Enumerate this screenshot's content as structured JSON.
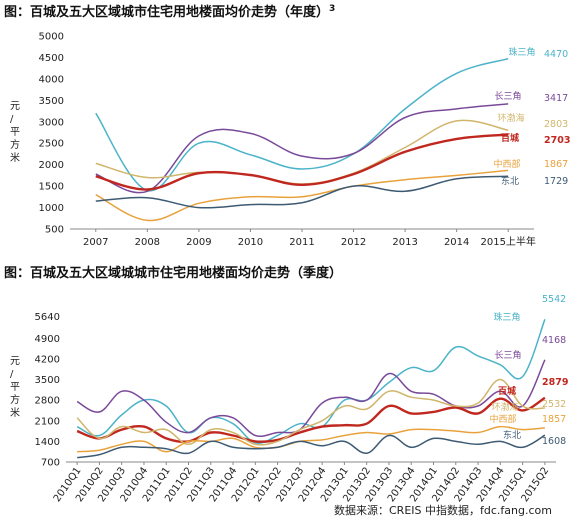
{
  "source": "数据来源：CREIS 中指数据，fdc.fang.com",
  "chart_data": [
    {
      "type": "line",
      "title": "图：百城及五大区域城市住宅用地楼面均价走势（年度）",
      "title_sup": "3",
      "ylabel": "元/平方米",
      "ylim": [
        500,
        5000
      ],
      "yticks": [
        500,
        1000,
        1500,
        2000,
        2500,
        3000,
        3500,
        4000,
        4500,
        5000
      ],
      "categories": [
        "2007",
        "2008",
        "2009",
        "2010",
        "2011",
        "2012",
        "2013",
        "2014",
        "2015上半年"
      ],
      "series": [
        {
          "name": "珠三角",
          "color": "#4bb3c9",
          "value_label": "4470",
          "values": [
            3200,
            1400,
            2500,
            2230,
            1900,
            2250,
            3300,
            4130,
            4470
          ]
        },
        {
          "name": "长三角",
          "color": "#7a4a9a",
          "value_label": "3417",
          "values": [
            1780,
            1380,
            2670,
            2730,
            2200,
            2260,
            3100,
            3300,
            3417
          ]
        },
        {
          "name": "环渤海",
          "color": "#d0b56a",
          "value_label": "2803",
          "values": [
            2030,
            1700,
            1820,
            1760,
            1550,
            1800,
            2400,
            3020,
            2803
          ]
        },
        {
          "name": "百城",
          "color": "#c0271f",
          "value_label": "2703",
          "values": [
            1730,
            1420,
            1800,
            1760,
            1530,
            1780,
            2300,
            2600,
            2703
          ]
        },
        {
          "name": "中西部",
          "color": "#e8a23c",
          "value_label": "1867",
          "values": [
            1300,
            700,
            1100,
            1250,
            1250,
            1500,
            1650,
            1750,
            1867
          ]
        },
        {
          "name": "东北",
          "color": "#3d5a73",
          "value_label": "1729",
          "values": [
            1150,
            1230,
            1000,
            1070,
            1110,
            1500,
            1380,
            1670,
            1729
          ]
        }
      ]
    },
    {
      "type": "line",
      "title": "图：百城及五大区域城城市住宅用地楼面均价走势（季度）",
      "ylabel": "元/平方米",
      "ylim": [
        700,
        6300
      ],
      "yticks": [
        700,
        1400,
        2100,
        2800,
        3500,
        4200,
        4900,
        5640
      ],
      "categories": [
        "2010Q1",
        "2010Q2",
        "2010Q3",
        "2010Q4",
        "2011Q1",
        "2011Q2",
        "2011Q3",
        "2011Q4",
        "2012Q1",
        "2012Q2",
        "2012Q3",
        "2012Q4",
        "2013Q1",
        "2013Q2",
        "2013Q3",
        "2013Q4",
        "2014Q1",
        "2014Q2",
        "2014Q3",
        "2014Q4",
        "2015Q1",
        "2015Q2"
      ],
      "series": [
        {
          "name": "珠三角",
          "color": "#4bb3c9",
          "value_label": "5542",
          "values": [
            1900,
            1600,
            2300,
            2800,
            2600,
            1700,
            2200,
            2000,
            1350,
            1600,
            2000,
            1900,
            2800,
            2800,
            3400,
            3900,
            3800,
            4600,
            4300,
            4000,
            3600,
            5542
          ]
        },
        {
          "name": "长三角",
          "color": "#7a4a9a",
          "value_label": "4168",
          "values": [
            2750,
            2400,
            3100,
            2800,
            2050,
            1700,
            2200,
            2200,
            1600,
            1700,
            1800,
            2700,
            2900,
            2800,
            3700,
            3100,
            3000,
            2600,
            2600,
            3100,
            2600,
            4168
          ]
        },
        {
          "name": "百城",
          "color": "#c0271f",
          "value_label": "2879",
          "values": [
            1750,
            1500,
            1800,
            1900,
            1500,
            1400,
            1700,
            1600,
            1400,
            1450,
            1700,
            1900,
            1950,
            2000,
            2600,
            2350,
            2400,
            2550,
            2350,
            2850,
            2450,
            2879
          ]
        },
        {
          "name": "环渤海",
          "color": "#d0b56a",
          "value_label": "2532",
          "values": [
            2200,
            1500,
            1900,
            1700,
            1800,
            1300,
            1800,
            1700,
            1300,
            1400,
            1800,
            2100,
            2600,
            2500,
            3100,
            2900,
            2800,
            2600,
            2700,
            3500,
            2600,
            2532
          ]
        },
        {
          "name": "中西部",
          "color": "#e8a23c",
          "value_label": "1857",
          "values": [
            1050,
            1100,
            1300,
            1400,
            1050,
            1400,
            1400,
            1500,
            1200,
            1200,
            1400,
            1450,
            1600,
            1700,
            1650,
            1800,
            1800,
            1750,
            1700,
            1900,
            1800,
            1857
          ]
        },
        {
          "name": "东北",
          "color": "#3d5a73",
          "value_label": "1608",
          "values": [
            850,
            950,
            1200,
            1200,
            1150,
            1000,
            1400,
            1200,
            1150,
            1200,
            1400,
            1250,
            1400,
            1000,
            1600,
            1200,
            1500,
            1400,
            1300,
            1400,
            1200,
            1608
          ]
        }
      ]
    }
  ]
}
